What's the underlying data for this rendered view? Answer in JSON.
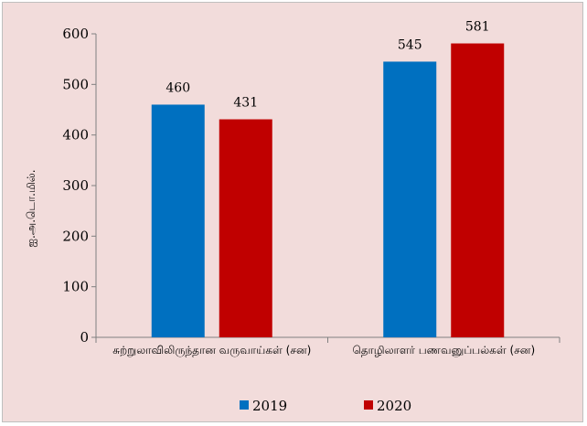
{
  "chart_data": {
    "type": "bar",
    "categories": [
      "சுற்றுலாவிலிருந்தான வருவாய்கள் (சன)",
      "தொழிலாளர் பணவனுப்பல்கள் (சன)"
    ],
    "series": [
      {
        "name": "2019",
        "values": [
          460,
          545
        ],
        "color": "#0070c0"
      },
      {
        "name": "2020",
        "values": [
          431,
          581
        ],
        "color": "#c00000"
      }
    ],
    "ylabel": "ஐ.அ.டொ.மில்.",
    "xlabel": "",
    "ylim": [
      0,
      600
    ],
    "yticks": [
      0,
      100,
      200,
      300,
      400,
      500,
      600
    ],
    "grid": false,
    "legend": "bottom"
  }
}
